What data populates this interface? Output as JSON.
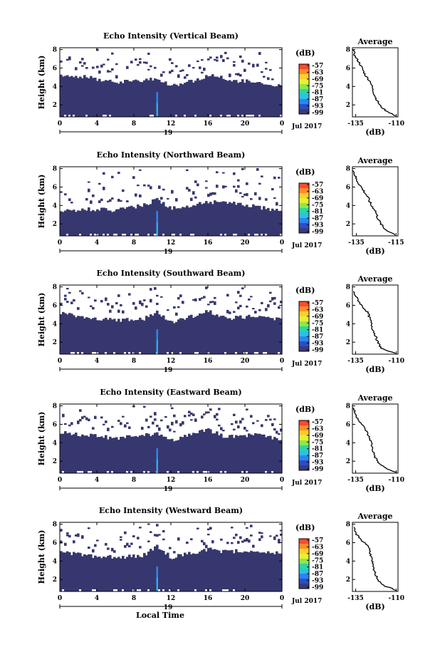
{
  "chart_data": [
    {
      "type": "heatmap",
      "title": "Echo Intensity (Vertical Beam)",
      "ylabel": "Height (km)",
      "y_ticks": [
        "2",
        "4",
        "6",
        "8"
      ],
      "x_ticks": [
        "0",
        "4",
        "8",
        "12",
        "16",
        "20",
        "0"
      ],
      "x_sub": "19",
      "date": "Jul 2017",
      "xlim": [
        0,
        24
      ],
      "ylim": [
        0.7,
        8.2
      ],
      "cloud_top_km": [
        [
          0,
          5.3
        ],
        [
          3,
          5.0
        ],
        [
          6,
          4.5
        ],
        [
          9,
          4.6
        ],
        [
          10.5,
          4.9
        ],
        [
          12,
          4.1
        ],
        [
          14,
          4.5
        ],
        [
          15.5,
          5.0
        ],
        [
          17,
          5.3
        ],
        [
          18,
          4.7
        ],
        [
          21,
          4.5
        ],
        [
          24,
          4.0
        ]
      ],
      "spike_hour": 10.5
    },
    {
      "type": "heatmap",
      "title": "Echo Intensity (Northward Beam)",
      "ylabel": "Height (km)",
      "y_ticks": [
        "2",
        "4",
        "6",
        "8"
      ],
      "x_ticks": [
        "0",
        "4",
        "8",
        "12",
        "16",
        "20",
        "0"
      ],
      "x_sub": "19",
      "date": "Jul 2017",
      "xlim": [
        0,
        24
      ],
      "ylim": [
        0.7,
        8.2
      ],
      "cloud_top_km": [
        [
          0,
          3.3
        ],
        [
          3,
          3.6
        ],
        [
          6,
          3.5
        ],
        [
          9,
          4.0
        ],
        [
          10.5,
          4.7
        ],
        [
          12,
          3.7
        ],
        [
          14,
          4.0
        ],
        [
          16,
          4.4
        ],
        [
          18,
          4.3
        ],
        [
          21,
          3.9
        ],
        [
          24,
          3.4
        ]
      ],
      "spike_hour": 10.5
    },
    {
      "type": "heatmap",
      "title": "Echo Intensity (Southward Beam)",
      "ylabel": "Height (km)",
      "y_ticks": [
        "2",
        "4",
        "6",
        "8"
      ],
      "x_ticks": [
        "0",
        "4",
        "8",
        "12",
        "16",
        "20",
        "0"
      ],
      "x_sub": "19",
      "date": "Jul 2017",
      "xlim": [
        0,
        24
      ],
      "ylim": [
        0.7,
        8.2
      ],
      "cloud_top_km": [
        [
          0,
          5.1
        ],
        [
          3,
          4.7
        ],
        [
          6,
          4.4
        ],
        [
          9,
          4.5
        ],
        [
          10.5,
          5.3
        ],
        [
          12,
          4.2
        ],
        [
          14,
          4.7
        ],
        [
          16,
          5.4
        ],
        [
          18,
          4.6
        ],
        [
          21,
          4.8
        ],
        [
          24,
          4.5
        ]
      ],
      "spike_hour": 10.5
    },
    {
      "type": "heatmap",
      "title": "Echo Intensity (Eastward Beam)",
      "ylabel": "Height (km)",
      "y_ticks": [
        "2",
        "4",
        "6",
        "8"
      ],
      "x_ticks": [
        "0",
        "4",
        "8",
        "12",
        "16",
        "20",
        "0"
      ],
      "x_sub": "19",
      "date": "Jul 2017",
      "xlim": [
        0,
        24
      ],
      "ylim": [
        0.7,
        8.2
      ],
      "cloud_top_km": [
        [
          0,
          5.2
        ],
        [
          3,
          4.8
        ],
        [
          6,
          4.5
        ],
        [
          9,
          4.8
        ],
        [
          10.5,
          5.0
        ],
        [
          12,
          4.2
        ],
        [
          14,
          4.9
        ],
        [
          16,
          5.4
        ],
        [
          18,
          4.6
        ],
        [
          21,
          4.9
        ],
        [
          24,
          4.4
        ]
      ],
      "spike_hour": 10.5
    },
    {
      "type": "heatmap",
      "title": "Echo Intensity (Westward Beam)",
      "ylabel": "Height (km)",
      "y_ticks": [
        "2",
        "4",
        "6",
        "8"
      ],
      "x_ticks": [
        "0",
        "4",
        "8",
        "12",
        "16",
        "20",
        "0"
      ],
      "x_sub": "19",
      "date": "Jul 2017",
      "xlabel": "Local Time",
      "xlim": [
        0,
        24
      ],
      "ylim": [
        0.7,
        8.2
      ],
      "cloud_top_km": [
        [
          0,
          5.0
        ],
        [
          3,
          4.6
        ],
        [
          6,
          4.4
        ],
        [
          9,
          4.6
        ],
        [
          10.5,
          5.6
        ],
        [
          12,
          4.4
        ],
        [
          14,
          4.8
        ],
        [
          16,
          5.3
        ],
        [
          18,
          5.0
        ],
        [
          21,
          5.2
        ],
        [
          24,
          4.8
        ]
      ],
      "spike_hour": 10.5
    }
  ],
  "colorbar": {
    "label": "(dB)",
    "ticks": [
      "-57",
      "-63",
      "-69",
      "-75",
      "-81",
      "-87",
      "-93",
      "-99"
    ],
    "colors": [
      "#ff4a2a",
      "#ff8c2a",
      "#ffcf2a",
      "#e8f030",
      "#8ee84a",
      "#2ad8a0",
      "#2ac2e6",
      "#2a86f0",
      "#2a4ec8",
      "#3a3a7a"
    ]
  },
  "profiles": [
    {
      "title": "Average",
      "xlabel": "(dB)",
      "x_ticks": [
        "-135",
        "-110"
      ],
      "y_ticks": [
        "2",
        "4",
        "6",
        "8"
      ],
      "xlim": [
        -137,
        -109
      ],
      "ylim": [
        0.7,
        8.2
      ],
      "points": [
        [
          -136.5,
          8.0
        ],
        [
          -135.5,
          7.3
        ],
        [
          -132.5,
          6.5
        ],
        [
          -129,
          5.2
        ],
        [
          -125.5,
          4.4
        ],
        [
          -124.5,
          3.6
        ],
        [
          -122.5,
          2.7
        ],
        [
          -120,
          1.9
        ],
        [
          -116,
          1.3
        ],
        [
          -112,
          1.0
        ],
        [
          -110.5,
          0.8
        ]
      ]
    },
    {
      "title": "Average",
      "xlabel": "(dB)",
      "x_ticks": [
        "-135",
        "-115"
      ],
      "y_ticks": [
        "2",
        "4",
        "6",
        "8"
      ],
      "xlim": [
        -137,
        -114
      ],
      "ylim": [
        0.7,
        8.2
      ],
      "points": [
        [
          -136.5,
          7.8
        ],
        [
          -135,
          6.8
        ],
        [
          -132,
          5.8
        ],
        [
          -129.5,
          5.0
        ],
        [
          -127.5,
          4.0
        ],
        [
          -125.5,
          3.5
        ],
        [
          -124.5,
          2.8
        ],
        [
          -123,
          2.1
        ],
        [
          -121,
          1.5
        ],
        [
          -118,
          1.1
        ],
        [
          -115,
          0.8
        ]
      ]
    },
    {
      "title": "Average",
      "xlabel": "(dB)",
      "x_ticks": [
        "-135",
        "-110"
      ],
      "y_ticks": [
        "2",
        "4",
        "6",
        "8"
      ],
      "xlim": [
        -137,
        -109
      ],
      "ylim": [
        0.7,
        8.2
      ],
      "points": [
        [
          -136.5,
          7.5
        ],
        [
          -135,
          7.0
        ],
        [
          -131.5,
          6.0
        ],
        [
          -127.5,
          5.2
        ],
        [
          -125.5,
          4.1
        ],
        [
          -124.5,
          3.4
        ],
        [
          -123,
          2.8
        ],
        [
          -121.5,
          2.0
        ],
        [
          -119,
          1.3
        ],
        [
          -114.5,
          1.0
        ],
        [
          -111,
          0.8
        ]
      ]
    },
    {
      "title": "Average",
      "xlabel": "(dB)",
      "x_ticks": [
        "-135",
        "-110"
      ],
      "y_ticks": [
        "2",
        "4",
        "6",
        "8"
      ],
      "xlim": [
        -137,
        -109
      ],
      "ylim": [
        0.7,
        8.2
      ],
      "points": [
        [
          -136.5,
          7.8
        ],
        [
          -135,
          7.0
        ],
        [
          -132,
          6.2
        ],
        [
          -128.5,
          5.3
        ],
        [
          -125.5,
          4.1
        ],
        [
          -124.5,
          3.2
        ],
        [
          -123,
          2.4
        ],
        [
          -120.5,
          1.7
        ],
        [
          -116,
          1.2
        ],
        [
          -112,
          0.9
        ],
        [
          -110.5,
          0.8
        ]
      ]
    },
    {
      "title": "Average",
      "xlabel": "(dB)",
      "x_ticks": [
        "-135",
        "-110"
      ],
      "y_ticks": [
        "2",
        "4",
        "6",
        "8"
      ],
      "xlim": [
        -137,
        -109
      ],
      "ylim": [
        0.7,
        8.2
      ],
      "points": [
        [
          -136.5,
          7.7
        ],
        [
          -135,
          7.0
        ],
        [
          -131,
          6.2
        ],
        [
          -127,
          5.6
        ],
        [
          -125.5,
          4.5
        ],
        [
          -124.5,
          3.4
        ],
        [
          -123,
          2.6
        ],
        [
          -121,
          1.9
        ],
        [
          -117.5,
          1.3
        ],
        [
          -112.5,
          1.0
        ],
        [
          -110.5,
          0.8
        ]
      ]
    }
  ]
}
